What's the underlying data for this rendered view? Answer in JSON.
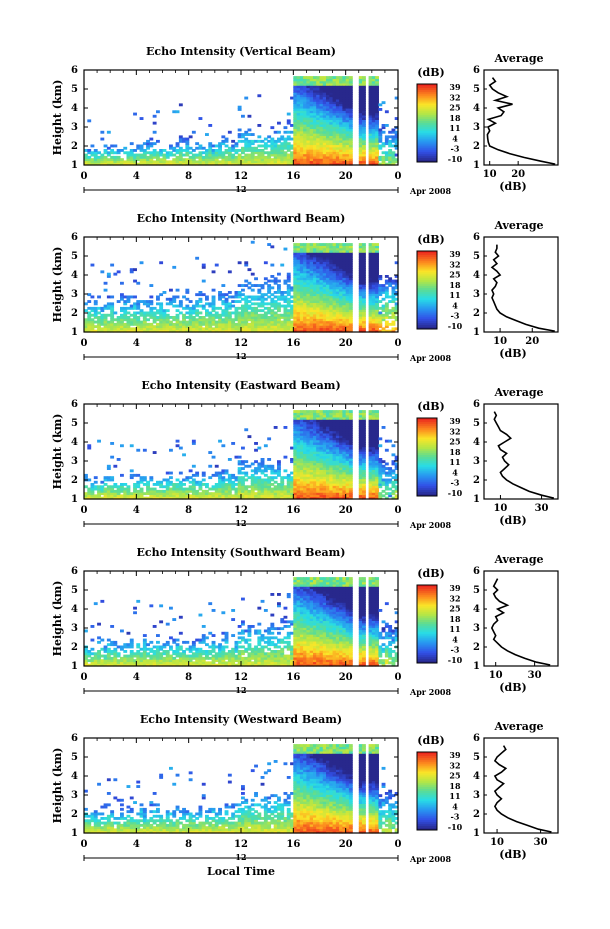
{
  "chart_data": [
    {
      "type": "heatmap",
      "title": "Echo Intensity (Vertical Beam)",
      "ylabel": "Height (km)",
      "ylim": [
        1,
        6
      ],
      "yticks": [
        1,
        2,
        3,
        4,
        5,
        6
      ],
      "xticks": [
        "0",
        "4",
        "8",
        "12",
        "16",
        "20",
        "0"
      ],
      "xlim": [
        0,
        24
      ],
      "date_mark": "12",
      "date_label": "Apr 2008",
      "colorbar": {
        "unit": "(dB)",
        "ticks": [
          "39",
          "32",
          "25",
          "18",
          "11",
          "4",
          "-3",
          "-10"
        ],
        "range": [
          -10,
          39
        ]
      },
      "profile": {
        "title": "Average",
        "xlabel": "(dB)",
        "xticks": [
          "10",
          "20"
        ],
        "xlim": [
          8,
          34
        ],
        "ylim": [
          1,
          6
        ],
        "heights": [
          1.05,
          1.2,
          1.4,
          1.6,
          1.8,
          2.0,
          2.2,
          2.4,
          2.6,
          2.8,
          3.0,
          3.2,
          3.4,
          3.6,
          3.8,
          4.0,
          4.2,
          4.4,
          4.6,
          4.8,
          5.0,
          5.2,
          5.4,
          5.6
        ],
        "values": [
          33,
          28,
          22,
          17,
          13,
          10,
          9.5,
          9.3,
          9.2,
          10,
          9.4,
          12,
          9.5,
          14,
          15,
          13,
          18,
          12,
          16,
          13,
          11,
          10,
          12,
          11
        ]
      },
      "heatmap_summary": {
        "clear_air_hours": [
          0,
          15.8
        ],
        "clear_air_top_km": [
          1.6,
          2.6
        ],
        "precip_hours": [
          15.9,
          22.3
        ],
        "precip_top_km": 5.6,
        "peak_dB": 39
      }
    },
    {
      "type": "heatmap",
      "title": "Echo Intensity (Northward Beam)",
      "ylabel": "Height (km)",
      "ylim": [
        1,
        6
      ],
      "yticks": [
        1,
        2,
        3,
        4,
        5,
        6
      ],
      "xticks": [
        "0",
        "4",
        "8",
        "12",
        "16",
        "20",
        "0"
      ],
      "xlim": [
        0,
        24
      ],
      "date_mark": "12",
      "date_label": "Apr 2008",
      "colorbar": {
        "unit": "(dB)",
        "ticks": [
          "39",
          "32",
          "25",
          "18",
          "11",
          "4",
          "-3",
          "-10"
        ],
        "range": [
          -10,
          39
        ]
      },
      "profile": {
        "title": "Average",
        "xlabel": "(dB)",
        "xticks": [
          "10",
          "20"
        ],
        "xlim": [
          5,
          28
        ],
        "ylim": [
          1,
          6
        ],
        "heights": [
          1.05,
          1.2,
          1.4,
          1.6,
          1.8,
          2.0,
          2.2,
          2.4,
          2.6,
          2.8,
          3.0,
          3.2,
          3.4,
          3.6,
          3.8,
          4.0,
          4.2,
          4.4,
          4.6,
          4.8,
          5.0,
          5.2,
          5.4,
          5.6
        ],
        "values": [
          27,
          22,
          18,
          15,
          12,
          10,
          9,
          8.5,
          8,
          7.5,
          8,
          7.5,
          8.5,
          9,
          8,
          10,
          9,
          7.5,
          9,
          8,
          9.5,
          8.5,
          9,
          9
        ]
      },
      "heatmap_summary": {
        "clear_air_hours": [
          0,
          15.8
        ],
        "clear_air_top_km": [
          2.0,
          3.6
        ],
        "precip_hours": [
          15.9,
          22.3
        ],
        "precip_top_km": 5.6,
        "peak_dB": 39
      }
    },
    {
      "type": "heatmap",
      "title": "Echo Intensity (Eastward Beam)",
      "ylabel": "Height (km)",
      "ylim": [
        1,
        6
      ],
      "yticks": [
        1,
        2,
        3,
        4,
        5,
        6
      ],
      "xticks": [
        "0",
        "4",
        "8",
        "12",
        "16",
        "20",
        "0"
      ],
      "xlim": [
        0,
        24
      ],
      "date_mark": "12",
      "date_label": "Apr 2008",
      "colorbar": {
        "unit": "(dB)",
        "ticks": [
          "39",
          "32",
          "25",
          "18",
          "11",
          "4",
          "-3",
          "-10"
        ],
        "range": [
          -10,
          39
        ]
      },
      "profile": {
        "title": "Average",
        "xlabel": "(dB)",
        "xticks": [
          "10",
          "30"
        ],
        "xlim": [
          2,
          38
        ],
        "ylim": [
          1,
          6
        ],
        "heights": [
          1.05,
          1.2,
          1.4,
          1.6,
          1.8,
          2.0,
          2.2,
          2.4,
          2.6,
          2.8,
          3.0,
          3.2,
          3.4,
          3.6,
          3.8,
          4.0,
          4.2,
          4.4,
          4.6,
          4.8,
          5.0,
          5.2,
          5.4,
          5.6
        ],
        "values": [
          36,
          30,
          24,
          20,
          16,
          13,
          11,
          10,
          12,
          14,
          12,
          11,
          13,
          10,
          9,
          12,
          15,
          13,
          10,
          9,
          8,
          7,
          8,
          7
        ]
      },
      "heatmap_summary": {
        "clear_air_hours": [
          0,
          15.8
        ],
        "clear_air_top_km": [
          1.9,
          2.7
        ],
        "precip_hours": [
          15.9,
          22.3
        ],
        "precip_top_km": 5.6,
        "peak_dB": 39
      }
    },
    {
      "type": "heatmap",
      "title": "Echo Intensity (Southward Beam)",
      "ylabel": "Height (km)",
      "ylim": [
        1,
        6
      ],
      "yticks": [
        1,
        2,
        3,
        4,
        5,
        6
      ],
      "xticks": [
        "0",
        "4",
        "8",
        "12",
        "16",
        "20",
        "0"
      ],
      "xlim": [
        0,
        24
      ],
      "date_mark": "12",
      "date_label": "Apr 2008",
      "colorbar": {
        "unit": "(dB)",
        "ticks": [
          "39",
          "32",
          "25",
          "18",
          "11",
          "4",
          "-3",
          "-10"
        ],
        "range": [
          -10,
          39
        ]
      },
      "profile": {
        "title": "Average",
        "xlabel": "(dB)",
        "xticks": [
          "10",
          "30"
        ],
        "xlim": [
          4,
          42
        ],
        "ylim": [
          1,
          6
        ],
        "heights": [
          1.05,
          1.2,
          1.4,
          1.6,
          1.8,
          2.0,
          2.2,
          2.4,
          2.6,
          2.8,
          3.0,
          3.2,
          3.4,
          3.6,
          3.8,
          4.0,
          4.2,
          4.4,
          4.6,
          4.8,
          5.0,
          5.2,
          5.4,
          5.6
        ],
        "values": [
          38,
          31,
          25,
          20,
          16,
          13,
          11,
          9,
          10,
          9,
          8,
          9,
          11,
          10,
          14,
          11,
          16,
          12,
          10,
          9,
          11,
          9,
          10,
          11
        ]
      },
      "heatmap_summary": {
        "clear_air_hours": [
          0,
          15.8
        ],
        "clear_air_top_km": [
          1.9,
          2.9
        ],
        "precip_hours": [
          15.9,
          22.3
        ],
        "precip_top_km": 5.6,
        "peak_dB": 39
      }
    },
    {
      "type": "heatmap",
      "title": "Echo Intensity (Westward Beam)",
      "ylabel": "Height (km)",
      "ylim": [
        1,
        6
      ],
      "yticks": [
        1,
        2,
        3,
        4,
        5,
        6
      ],
      "xticks": [
        "0",
        "4",
        "8",
        "12",
        "16",
        "20",
        "0"
      ],
      "xlim": [
        0,
        24
      ],
      "date_mark": "12",
      "date_label": "Apr 2008",
      "colorbar": {
        "unit": "(dB)",
        "ticks": [
          "39",
          "32",
          "25",
          "18",
          "11",
          "4",
          "-3",
          "-10"
        ],
        "range": [
          -10,
          39
        ]
      },
      "xlabel": "Local Time",
      "profile": {
        "title": "Average",
        "xlabel": "(dB)",
        "xticks": [
          "10",
          "30"
        ],
        "xlim": [
          4,
          38
        ],
        "ylim": [
          1,
          6
        ],
        "heights": [
          1.05,
          1.2,
          1.4,
          1.6,
          1.8,
          2.0,
          2.2,
          2.4,
          2.6,
          2.8,
          3.0,
          3.2,
          3.4,
          3.6,
          3.8,
          4.0,
          4.2,
          4.4,
          4.6,
          4.8,
          5.0,
          5.2,
          5.4,
          5.6
        ],
        "values": [
          35,
          29,
          24,
          19,
          15,
          12,
          10,
          9,
          10,
          12,
          10,
          9,
          11,
          13,
          10,
          9,
          12,
          14,
          11,
          9,
          10,
          12,
          14,
          13
        ]
      },
      "heatmap_summary": {
        "clear_air_hours": [
          0,
          15.8
        ],
        "clear_air_top_km": [
          1.9,
          2.8
        ],
        "precip_hours": [
          15.9,
          22.3
        ],
        "precip_top_km": 5.6,
        "peak_dB": 39
      }
    }
  ]
}
